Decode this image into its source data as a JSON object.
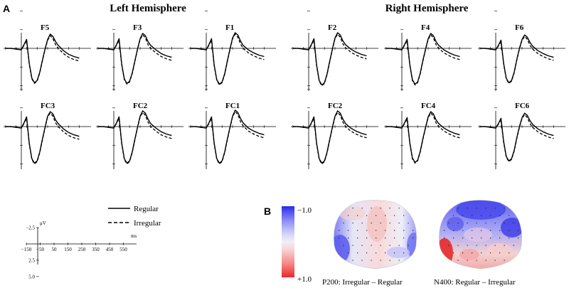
{
  "figure": {
    "panel_a_label": "A",
    "panel_b_label": "B",
    "left_title": "Left Hemisphere",
    "right_title": "Right Hemisphere"
  },
  "legend": {
    "regular": "Regular",
    "irregular": "Irregular"
  },
  "scale": {
    "y_unit": "μV",
    "x_unit": "ms",
    "y_ticks": [
      "−2.5",
      "2.5",
      "5.0"
    ],
    "x_ticks": [
      "−150",
      "−50",
      "50",
      "150",
      "250",
      "350",
      "450",
      "550"
    ]
  },
  "colorbar": {
    "top": "−1.0",
    "bottom": "+1.0",
    "colors": [
      "#2a2ae6",
      "#5c5cf0",
      "#8b8bf5",
      "#b3b3f7",
      "#d6d6f8",
      "#f0f0f7",
      "#f8d6d6",
      "#f7b0b0",
      "#f58a8a",
      "#f05a5a",
      "#e82a2a"
    ]
  },
  "topomaps": [
    {
      "caption": "P200: Irregular – Regular"
    },
    {
      "caption": "N400: Regular – Irregular"
    }
  ],
  "chart_data": {
    "type": "line",
    "x_unit": "ms",
    "y_unit": "μV",
    "x_range": [
      -150,
      550
    ],
    "y_range_plotted_negative_up": [
      -2.5,
      5.0
    ],
    "series_names": [
      "Regular",
      "Irregular"
    ],
    "x": [
      -150,
      -100,
      -50,
      0,
      25,
      50,
      75,
      100,
      125,
      150,
      175,
      200,
      225,
      250,
      275,
      300,
      325,
      350,
      400,
      450,
      500,
      550
    ],
    "electrodes": [
      {
        "name": "F5",
        "hemisphere": "left",
        "row": 0,
        "col": 0,
        "regular": [
          0,
          0,
          0.1,
          0.2,
          -0.5,
          -1.2,
          2.0,
          4.0,
          4.6,
          4.3,
          3.2,
          1.6,
          0.1,
          -1.2,
          -1.9,
          -1.6,
          -0.9,
          -0.4,
          0.3,
          0.8,
          1.1,
          1.3
        ],
        "irregular": [
          0,
          0,
          0.1,
          0.2,
          -0.4,
          -1.0,
          2.1,
          4.1,
          4.7,
          4.4,
          3.3,
          1.7,
          0.2,
          -1.1,
          -1.7,
          -1.3,
          -0.5,
          0.0,
          0.7,
          1.2,
          1.5,
          1.7
        ]
      },
      {
        "name": "F3",
        "hemisphere": "left",
        "row": 0,
        "col": 1,
        "regular": [
          0,
          0,
          0.1,
          0.2,
          -0.5,
          -1.3,
          2.1,
          4.1,
          4.7,
          4.4,
          3.3,
          1.7,
          0.1,
          -1.3,
          -2.0,
          -1.7,
          -0.9,
          -0.4,
          0.2,
          0.7,
          1.0,
          1.2
        ],
        "irregular": [
          0,
          0,
          0.1,
          0.2,
          -0.4,
          -1.1,
          2.2,
          4.2,
          4.8,
          4.5,
          3.4,
          1.8,
          0.2,
          -1.2,
          -1.8,
          -1.4,
          -0.5,
          0.0,
          0.6,
          1.1,
          1.4,
          1.6
        ]
      },
      {
        "name": "F1",
        "hemisphere": "left",
        "row": 0,
        "col": 2,
        "regular": [
          0,
          0,
          0.1,
          0.2,
          -0.5,
          -1.3,
          2.2,
          4.2,
          4.8,
          4.5,
          3.4,
          1.7,
          0.1,
          -1.4,
          -2.1,
          -1.8,
          -1.0,
          -0.4,
          0.2,
          0.6,
          0.9,
          1.1
        ],
        "irregular": [
          0,
          0,
          0.1,
          0.2,
          -0.4,
          -1.1,
          2.3,
          4.3,
          4.9,
          4.6,
          3.5,
          1.8,
          0.2,
          -1.3,
          -1.9,
          -1.5,
          -0.6,
          0.0,
          0.6,
          1.0,
          1.3,
          1.5
        ]
      },
      {
        "name": "F2",
        "hemisphere": "right",
        "row": 0,
        "col": 0,
        "regular": [
          0,
          0,
          0.1,
          0.2,
          -0.5,
          -1.3,
          2.2,
          4.3,
          4.9,
          4.6,
          3.4,
          1.7,
          0.1,
          -1.4,
          -2.1,
          -1.8,
          -1.0,
          -0.5,
          0.1,
          0.5,
          0.8,
          1.0
        ],
        "irregular": [
          0,
          0,
          0.1,
          0.2,
          -0.4,
          -1.1,
          2.3,
          4.4,
          5.0,
          4.7,
          3.5,
          1.8,
          0.2,
          -1.3,
          -1.9,
          -1.5,
          -0.6,
          -0.1,
          0.5,
          0.9,
          1.2,
          1.4
        ]
      },
      {
        "name": "F4",
        "hemisphere": "right",
        "row": 0,
        "col": 1,
        "regular": [
          0,
          0,
          0.1,
          0.2,
          -0.5,
          -1.2,
          2.1,
          4.2,
          4.8,
          4.5,
          3.3,
          1.6,
          0.1,
          -1.3,
          -2.0,
          -1.7,
          -0.9,
          -0.4,
          0.2,
          0.6,
          0.9,
          1.1
        ],
        "irregular": [
          0,
          0,
          0.1,
          0.2,
          -0.4,
          -1.0,
          2.2,
          4.3,
          4.9,
          4.6,
          3.4,
          1.7,
          0.2,
          -1.2,
          -1.8,
          -1.4,
          -0.5,
          0.0,
          0.6,
          1.0,
          1.3,
          1.5
        ]
      },
      {
        "name": "F6",
        "hemisphere": "right",
        "row": 0,
        "col": 2,
        "regular": [
          0,
          0,
          0.1,
          0.2,
          -0.4,
          -1.1,
          2.0,
          4.0,
          4.6,
          4.3,
          3.2,
          1.5,
          0.0,
          -1.2,
          -1.8,
          -1.5,
          -0.8,
          -0.3,
          0.3,
          0.7,
          1.0,
          1.2
        ],
        "irregular": [
          0,
          0,
          0.1,
          0.2,
          -0.3,
          -0.9,
          2.1,
          4.1,
          4.7,
          4.4,
          3.3,
          1.6,
          0.1,
          -1.1,
          -1.6,
          -1.2,
          -0.4,
          0.1,
          0.7,
          1.1,
          1.4,
          1.6
        ]
      },
      {
        "name": "FC3",
        "hemisphere": "left",
        "row": 1,
        "col": 0,
        "regular": [
          0,
          0,
          0.1,
          0.2,
          -0.5,
          -1.3,
          2.2,
          4.3,
          4.9,
          4.6,
          3.4,
          1.7,
          0.1,
          -1.4,
          -2.0,
          -1.7,
          -0.9,
          -0.4,
          0.3,
          0.8,
          1.1,
          1.3
        ],
        "irregular": [
          0,
          0,
          0.1,
          0.2,
          -0.4,
          -1.1,
          2.3,
          4.4,
          5.0,
          4.7,
          3.5,
          1.8,
          0.2,
          -1.3,
          -1.8,
          -1.4,
          -0.5,
          0.0,
          0.7,
          1.2,
          1.5,
          1.7
        ]
      },
      {
        "name": "FC2",
        "hemisphere": "left",
        "row": 1,
        "col": 1,
        "regular": [
          0,
          0,
          0.1,
          0.2,
          -0.5,
          -1.3,
          2.2,
          4.3,
          4.9,
          4.6,
          3.4,
          1.7,
          0.1,
          -1.4,
          -2.1,
          -1.8,
          -1.0,
          -0.4,
          0.2,
          0.7,
          1.0,
          1.2
        ],
        "irregular": [
          0,
          0,
          0.1,
          0.2,
          -0.4,
          -1.1,
          2.3,
          4.4,
          5.0,
          4.7,
          3.5,
          1.8,
          0.2,
          -1.3,
          -1.9,
          -1.5,
          -0.6,
          0.0,
          0.6,
          1.1,
          1.4,
          1.6
        ]
      },
      {
        "name": "FC1",
        "hemisphere": "left",
        "row": 1,
        "col": 2,
        "regular": [
          0,
          0,
          0.1,
          0.2,
          -0.5,
          -1.3,
          2.2,
          4.3,
          4.9,
          4.6,
          3.4,
          1.7,
          0.1,
          -1.4,
          -2.2,
          -1.9,
          -1.1,
          -0.5,
          0.2,
          0.6,
          0.9,
          1.1
        ],
        "irregular": [
          0,
          0,
          0.1,
          0.2,
          -0.4,
          -1.1,
          2.3,
          4.4,
          5.0,
          4.7,
          3.5,
          1.8,
          0.2,
          -1.3,
          -2.0,
          -1.6,
          -0.7,
          -0.1,
          0.6,
          1.0,
          1.3,
          1.5
        ]
      },
      {
        "name": "FC2",
        "hemisphere": "right",
        "row": 1,
        "col": 0,
        "regular": [
          0,
          0,
          0.1,
          0.2,
          -0.5,
          -1.3,
          2.2,
          4.3,
          4.9,
          4.6,
          3.4,
          1.7,
          0.1,
          -1.4,
          -2.1,
          -1.8,
          -1.0,
          -0.4,
          0.2,
          0.6,
          0.9,
          1.1
        ],
        "irregular": [
          0,
          0,
          0.1,
          0.2,
          -0.4,
          -1.1,
          2.3,
          4.4,
          5.0,
          4.7,
          3.5,
          1.8,
          0.2,
          -1.3,
          -1.9,
          -1.5,
          -0.6,
          0.0,
          0.6,
          1.0,
          1.3,
          1.5
        ]
      },
      {
        "name": "FC4",
        "hemisphere": "right",
        "row": 1,
        "col": 1,
        "regular": [
          0,
          0,
          0.1,
          0.2,
          -0.5,
          -1.2,
          2.1,
          4.2,
          4.8,
          4.5,
          3.3,
          1.6,
          0.1,
          -1.3,
          -2.0,
          -1.7,
          -0.9,
          -0.4,
          0.2,
          0.6,
          0.9,
          1.1
        ],
        "irregular": [
          0,
          0,
          0.1,
          0.2,
          -0.4,
          -1.0,
          2.2,
          4.3,
          4.9,
          4.6,
          3.4,
          1.7,
          0.2,
          -1.2,
          -1.8,
          -1.4,
          -0.5,
          0.0,
          0.6,
          1.0,
          1.3,
          1.5
        ]
      },
      {
        "name": "FC6",
        "hemisphere": "right",
        "row": 1,
        "col": 2,
        "regular": [
          0,
          0,
          0.1,
          0.2,
          -0.4,
          -1.1,
          2.0,
          4.0,
          4.6,
          4.3,
          3.2,
          1.5,
          0.0,
          -1.2,
          -1.8,
          -1.5,
          -0.8,
          -0.3,
          0.3,
          0.7,
          1.0,
          1.2
        ],
        "irregular": [
          0,
          0,
          0.1,
          0.2,
          -0.3,
          -0.9,
          2.1,
          4.1,
          4.7,
          4.4,
          3.3,
          1.6,
          0.1,
          -1.1,
          -1.6,
          -1.2,
          -0.4,
          0.1,
          0.7,
          1.1,
          1.4,
          1.6
        ]
      }
    ]
  }
}
